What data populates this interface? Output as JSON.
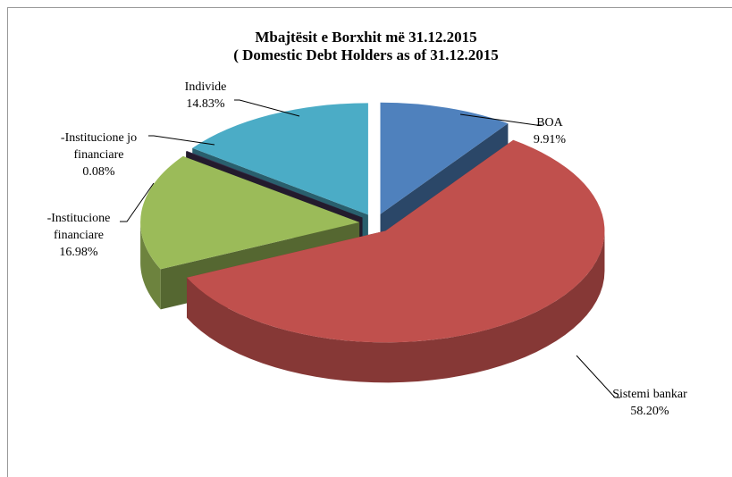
{
  "chart_data": {
    "type": "pie",
    "title": "Mbajtësit e Borxhit më 31.12.2015",
    "subtitle": "( Domestic Debt Holders as of 31.12.2015",
    "categories": [
      "BOA",
      "Sistemi bankar",
      "-Institucione financiare",
      "-Institucione jo financiare",
      "Individe"
    ],
    "values": [
      9.91,
      58.2,
      16.98,
      0.08,
      14.83
    ],
    "value_labels": [
      "9.91%",
      "58.20%",
      "16.98%",
      "0.08%",
      "14.83%"
    ],
    "colors": [
      "#4f81bd",
      "#c0504d",
      "#9bbb59",
      "#3f3151",
      "#4bacc6"
    ]
  }
}
